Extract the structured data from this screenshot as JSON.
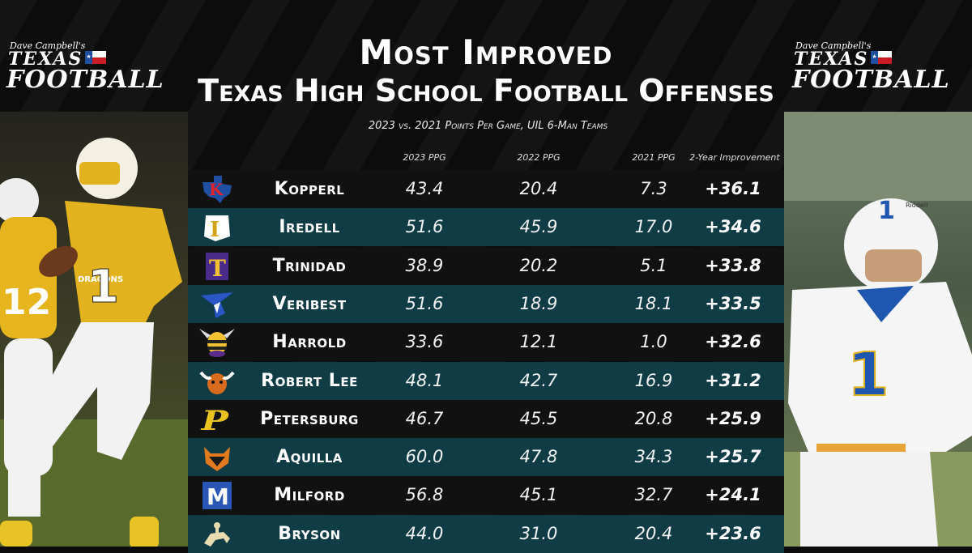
{
  "brand": {
    "dave": "Dave Campbell's",
    "texas": "TEXAS",
    "football": "FOOTBALL"
  },
  "header": {
    "title1": "Most Improved",
    "title2": "Texas High School Football Offenses",
    "subtitle": "2023 vs. 2021 Points Per Game, UIL 6-Man Teams"
  },
  "columns": {
    "ppg2023": "2023 PPG",
    "ppg2022": "2022 PPG",
    "ppg2021": "2021 PPG",
    "improvement": "2-Year Improvement"
  },
  "rows": [
    {
      "team": "Kopperl",
      "p2023": "43.4",
      "p2022": "20.4",
      "p2021": "7.3",
      "imp": "+36.1",
      "icon": "kopperl-k-texas-logo"
    },
    {
      "team": "Iredell",
      "p2023": "51.6",
      "p2022": "45.9",
      "p2021": "17.0",
      "imp": "+34.6",
      "icon": "iredell-i-logo"
    },
    {
      "team": "Trinidad",
      "p2023": "38.9",
      "p2022": "20.2",
      "p2021": "5.1",
      "imp": "+33.8",
      "icon": "trinidad-t-logo"
    },
    {
      "team": "Veribest",
      "p2023": "51.6",
      "p2022": "18.9",
      "p2021": "18.1",
      "imp": "+33.5",
      "icon": "falcon-logo"
    },
    {
      "team": "Harrold",
      "p2023": "33.6",
      "p2022": "12.1",
      "p2021": "1.0",
      "imp": "+32.6",
      "icon": "hornet-logo"
    },
    {
      "team": "Robert Lee",
      "p2023": "48.1",
      "p2022": "42.7",
      "p2021": "16.9",
      "imp": "+31.2",
      "icon": "steer-logo"
    },
    {
      "team": "Petersburg",
      "p2023": "46.7",
      "p2022": "45.5",
      "p2021": "20.8",
      "imp": "+25.9",
      "icon": "petersburg-p-logo"
    },
    {
      "team": "Aquilla",
      "p2023": "60.0",
      "p2022": "47.8",
      "p2021": "34.3",
      "imp": "+25.7",
      "icon": "panther-logo"
    },
    {
      "team": "Milford",
      "p2023": "56.8",
      "p2022": "45.1",
      "p2021": "32.7",
      "imp": "+24.1",
      "icon": "milford-bulldog-logo"
    },
    {
      "team": "Bryson",
      "p2023": "44.0",
      "p2022": "31.0",
      "p2021": "20.4",
      "imp": "+23.6",
      "icon": "bronco-rider-logo"
    }
  ],
  "colors": {
    "accent_teal": "#0f3c45",
    "gold": "#e2b31e",
    "blue": "#1e4fa3"
  },
  "photo_left": {
    "jersey_numbers": [
      "1",
      "12"
    ],
    "jersey_text": "DRAGONS"
  },
  "photo_right": {
    "jersey_number": "1",
    "helmet_text": "Riddell"
  }
}
